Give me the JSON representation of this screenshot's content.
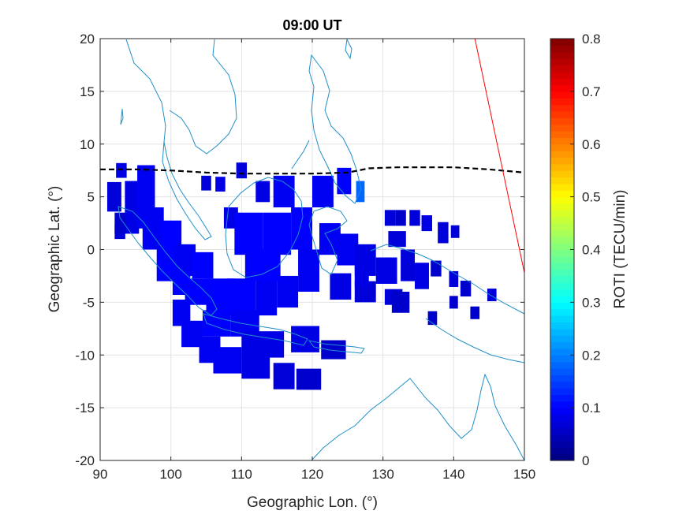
{
  "chart_data": {
    "type": "heatmap",
    "title": "09:00 UT",
    "xlabel": "Geographic Lon. (°)",
    "ylabel": "Geographic Lat. (°)",
    "xlim": [
      90,
      150
    ],
    "ylim": [
      -20,
      20
    ],
    "xticks": [
      90,
      100,
      110,
      120,
      130,
      140,
      150
    ],
    "yticks": [
      20,
      15,
      10,
      5,
      0,
      -5,
      -10,
      -15,
      -20
    ],
    "xtick_labels": [
      "90",
      "100",
      "110",
      "120",
      "130",
      "140",
      "150"
    ],
    "ytick_labels": [
      "20",
      "15",
      "10",
      "5",
      "0",
      "-5",
      "-10",
      "-15",
      "-20"
    ],
    "grid": true,
    "colorbar": {
      "label": "ROTI (TECU/min)",
      "range": [
        0,
        0.8
      ],
      "ticks": [
        0,
        0.1,
        0.2,
        0.3,
        0.4,
        0.5,
        0.6,
        0.7,
        0.8
      ],
      "tick_labels": [
        "0",
        "0.1",
        "0.2",
        "0.3",
        "0.4",
        "0.5",
        "0.6",
        "0.7",
        "0.8"
      ],
      "colormap": "jet"
    },
    "colors": {
      "coastline": "#1f8fc9",
      "equator_line": "#000000",
      "terminator_line": "#ff0000",
      "grid": "#e3e3e3"
    },
    "magnetic_equator": [
      [
        90,
        7.6
      ],
      [
        95,
        7.6
      ],
      [
        100,
        7.5
      ],
      [
        105,
        7.3
      ],
      [
        110,
        7.2
      ],
      [
        115,
        7.2
      ],
      [
        120,
        7.2
      ],
      [
        125,
        7.3
      ],
      [
        128,
        7.7
      ],
      [
        132,
        7.8
      ],
      [
        136,
        7.8
      ],
      [
        140,
        7.8
      ],
      [
        145,
        7.6
      ],
      [
        150,
        7.3
      ]
    ],
    "terminator": [
      [
        143,
        20
      ],
      [
        150,
        -2.2
      ]
    ],
    "roti_cells": [
      {
        "lon": 92,
        "lat": 5,
        "w": 2,
        "h": 2.8,
        "roti": 0.07
      },
      {
        "lon": 93,
        "lat": 7.5,
        "w": 1.5,
        "h": 1.4,
        "roti": 0.08
      },
      {
        "lon": 94.5,
        "lat": 4,
        "w": 2,
        "h": 5,
        "roti": 0.08
      },
      {
        "lon": 92.8,
        "lat": 1.7,
        "w": 1.5,
        "h": 1.4,
        "roti": 0.07
      },
      {
        "lon": 92.8,
        "lat": 2.5,
        "w": 1.5,
        "h": 2,
        "roti": 0.06
      },
      {
        "lon": 96.5,
        "lat": 5,
        "w": 2.5,
        "h": 6,
        "roti": 0.09
      },
      {
        "lon": 97.5,
        "lat": 2,
        "w": 3,
        "h": 4,
        "roti": 0.09
      },
      {
        "lon": 100,
        "lat": 1,
        "w": 3,
        "h": 3.5,
        "roti": 0.1
      },
      {
        "lon": 99.5,
        "lat": -1.5,
        "w": 3,
        "h": 3,
        "roti": 0.1
      },
      {
        "lon": 102,
        "lat": -1,
        "w": 3,
        "h": 3,
        "roti": 0.09
      },
      {
        "lon": 101.5,
        "lat": -3.2,
        "w": 2.5,
        "h": 2.2,
        "roti": 0.1
      },
      {
        "lon": 104.5,
        "lat": -1.5,
        "w": 3,
        "h": 2.5,
        "roti": 0.1
      },
      {
        "lon": 104,
        "lat": -4,
        "w": 4,
        "h": 2.5,
        "roti": 0.1
      },
      {
        "lon": 107,
        "lat": -4.5,
        "w": 4,
        "h": 3.5,
        "roti": 0.1
      },
      {
        "lon": 110,
        "lat": -4.5,
        "w": 4,
        "h": 3.5,
        "roti": 0.1
      },
      {
        "lon": 113.5,
        "lat": -4.5,
        "w": 3,
        "h": 3.5,
        "roti": 0.09
      },
      {
        "lon": 116.5,
        "lat": -4,
        "w": 3,
        "h": 3,
        "roti": 0.09
      },
      {
        "lon": 106.5,
        "lat": -7,
        "w": 4,
        "h": 2.5,
        "roti": 0.1
      },
      {
        "lon": 110.5,
        "lat": -7,
        "w": 4,
        "h": 2.5,
        "roti": 0.09
      },
      {
        "lon": 113,
        "lat": -9,
        "w": 6,
        "h": 2.5,
        "roti": 0.08
      },
      {
        "lon": 119,
        "lat": -8.5,
        "w": 4,
        "h": 2.5,
        "roti": 0.08
      },
      {
        "lon": 123,
        "lat": -9.5,
        "w": 3.5,
        "h": 1.8,
        "roti": 0.06
      },
      {
        "lon": 101.5,
        "lat": -6,
        "w": 2.5,
        "h": 2.5,
        "roti": 0.09
      },
      {
        "lon": 103,
        "lat": -8,
        "w": 3,
        "h": 2.5,
        "roti": 0.09
      },
      {
        "lon": 105.5,
        "lat": -9.5,
        "w": 3,
        "h": 2.5,
        "roti": 0.09
      },
      {
        "lon": 108,
        "lat": -10.5,
        "w": 4,
        "h": 2.5,
        "roti": 0.09
      },
      {
        "lon": 112,
        "lat": -11,
        "w": 4,
        "h": 2.5,
        "roti": 0.08
      },
      {
        "lon": 116,
        "lat": -12,
        "w": 3,
        "h": 2.5,
        "roti": 0.07
      },
      {
        "lon": 119.5,
        "lat": -12.3,
        "w": 3.5,
        "h": 2,
        "roti": 0.06
      },
      {
        "lon": 108.5,
        "lat": 3,
        "w": 2,
        "h": 2,
        "roti": 0.08
      },
      {
        "lon": 110,
        "lat": 7.5,
        "w": 1.5,
        "h": 1.5,
        "roti": 0.07
      },
      {
        "lon": 113,
        "lat": 5.5,
        "w": 2,
        "h": 2,
        "roti": 0.08
      },
      {
        "lon": 116,
        "lat": 5.5,
        "w": 3,
        "h": 3,
        "roti": 0.09
      },
      {
        "lon": 111,
        "lat": 1.5,
        "w": 4,
        "h": 4,
        "roti": 0.1
      },
      {
        "lon": 115,
        "lat": 1.5,
        "w": 4,
        "h": 4,
        "roti": 0.1
      },
      {
        "lon": 113,
        "lat": -1.5,
        "w": 5,
        "h": 3,
        "roti": 0.1
      },
      {
        "lon": 118.5,
        "lat": 2,
        "w": 3,
        "h": 4,
        "roti": 0.1
      },
      {
        "lon": 119.5,
        "lat": -2,
        "w": 3,
        "h": 4,
        "roti": 0.09
      },
      {
        "lon": 121.5,
        "lat": 5.5,
        "w": 3,
        "h": 3,
        "roti": 0.09
      },
      {
        "lon": 124.5,
        "lat": 6.5,
        "w": 2,
        "h": 2.5,
        "roti": 0.1
      },
      {
        "lon": 126.8,
        "lat": 5.5,
        "w": 1.2,
        "h": 2,
        "roti": 0.18
      },
      {
        "lon": 122.5,
        "lat": 1,
        "w": 3,
        "h": 3,
        "roti": 0.09
      },
      {
        "lon": 125,
        "lat": 0,
        "w": 3,
        "h": 3,
        "roti": 0.09
      },
      {
        "lon": 127.5,
        "lat": -1,
        "w": 3,
        "h": 3,
        "roti": 0.08
      },
      {
        "lon": 130.5,
        "lat": -2,
        "w": 3,
        "h": 2.5,
        "roti": 0.08
      },
      {
        "lon": 124,
        "lat": -3.5,
        "w": 3,
        "h": 2.5,
        "roti": 0.08
      },
      {
        "lon": 127.5,
        "lat": -4,
        "w": 3,
        "h": 2,
        "roti": 0.07
      },
      {
        "lon": 131.5,
        "lat": -4.5,
        "w": 2.5,
        "h": 1.5,
        "roti": 0.07
      },
      {
        "lon": 133.5,
        "lat": -1.5,
        "w": 2,
        "h": 3,
        "roti": 0.07
      },
      {
        "lon": 135.5,
        "lat": -2.5,
        "w": 2,
        "h": 2.5,
        "roti": 0.08
      },
      {
        "lon": 131,
        "lat": 3,
        "w": 1.5,
        "h": 1.5,
        "roti": 0.07
      },
      {
        "lon": 132.5,
        "lat": 3,
        "w": 1.5,
        "h": 1.5,
        "roti": 0.06
      },
      {
        "lon": 134.5,
        "lat": 3,
        "w": 1.5,
        "h": 1.5,
        "roti": 0.07
      },
      {
        "lon": 136.2,
        "lat": 2.5,
        "w": 1.5,
        "h": 1.5,
        "roti": 0.08
      },
      {
        "lon": 132,
        "lat": 1,
        "w": 2.5,
        "h": 1.5,
        "roti": 0.07
      },
      {
        "lon": 138.5,
        "lat": 1.6,
        "w": 1.5,
        "h": 2,
        "roti": 0.07
      },
      {
        "lon": 140.2,
        "lat": 1.7,
        "w": 1.2,
        "h": 1.2,
        "roti": 0.07
      },
      {
        "lon": 137.5,
        "lat": -1.8,
        "w": 1.5,
        "h": 1.5,
        "roti": 0.06
      },
      {
        "lon": 140,
        "lat": -2.8,
        "w": 1.3,
        "h": 1.5,
        "roti": 0.07
      },
      {
        "lon": 141.7,
        "lat": -3.7,
        "w": 1.5,
        "h": 1.5,
        "roti": 0.06
      },
      {
        "lon": 140,
        "lat": -5,
        "w": 1.2,
        "h": 1.2,
        "roti": 0.06
      },
      {
        "lon": 145.4,
        "lat": -4.3,
        "w": 1.3,
        "h": 1.2,
        "roti": 0.07
      },
      {
        "lon": 143,
        "lat": -6,
        "w": 1.3,
        "h": 1.2,
        "roti": 0.06
      },
      {
        "lon": 137,
        "lat": -6.5,
        "w": 1.3,
        "h": 1.3,
        "roti": 0.06
      },
      {
        "lon": 132.5,
        "lat": -5,
        "w": 2.5,
        "h": 2,
        "roti": 0.06
      },
      {
        "lon": 105,
        "lat": 6.3,
        "w": 1.4,
        "h": 1.4,
        "roti": 0.07
      },
      {
        "lon": 107,
        "lat": 6.2,
        "w": 1.4,
        "h": 1.4,
        "roti": 0.08
      },
      {
        "lon": 127,
        "lat": -2.5,
        "w": 2,
        "h": 2,
        "roti": 0.08
      }
    ]
  }
}
